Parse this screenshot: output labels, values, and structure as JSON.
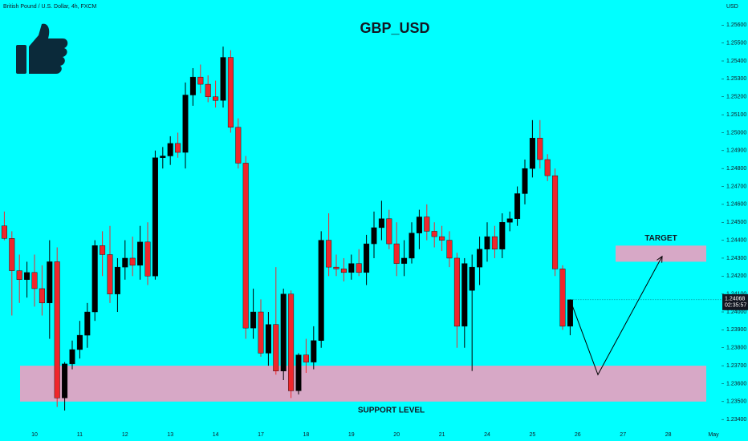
{
  "chart_data": {
    "type": "candlestick",
    "title": "GBP_USD",
    "subtitle": "British Pound / U.S. Dollar, 4h, FXCM",
    "currency": "USD",
    "categories": [
      null,
      null,
      null,
      null,
      "10",
      null,
      null,
      null,
      null,
      null,
      "11",
      null,
      null,
      null,
      null,
      null,
      "12",
      null,
      null,
      null,
      null,
      null,
      "13",
      null,
      null,
      null,
      null,
      null,
      "14",
      null,
      null,
      null,
      null,
      null,
      "17",
      null,
      null,
      null,
      null,
      null,
      "18",
      null,
      null,
      null,
      null,
      null,
      "19",
      null,
      null,
      null,
      null,
      null,
      "20",
      null,
      null,
      null,
      null,
      null,
      "21",
      null,
      null,
      null,
      null,
      null,
      "24",
      null,
      null,
      null,
      null,
      null,
      "25",
      null,
      null,
      null,
      null,
      null,
      "26",
      null,
      null,
      null,
      null,
      null,
      "27",
      null,
      null,
      null,
      null,
      null,
      "28",
      null,
      null,
      null,
      null,
      null,
      "May",
      null
    ],
    "open": [
      1.2448,
      1.2441,
      1.2423,
      1.2418,
      1.2422,
      1.2413,
      1.2405,
      1.2428,
      1.2352,
      1.2371,
      1.2379,
      1.2387,
      1.24,
      1.2437,
      1.2432,
      1.241,
      1.2425,
      1.243,
      1.2426,
      1.2439,
      1.242,
      1.2486,
      1.2487,
      1.2494,
      1.2489,
      1.2521,
      1.2531,
      1.2527,
      1.252,
      1.2518,
      1.2542,
      1.2503,
      1.2483,
      1.2391,
      1.24,
      1.2377,
      1.2393,
      1.2367,
      1.241,
      1.2356,
      1.2376,
      1.2372,
      1.2384,
      1.244,
      1.2425,
      1.2424,
      1.2422,
      1.2427,
      1.2422,
      1.2438,
      1.2447,
      1.2452,
      1.2438,
      1.2427,
      1.243,
      1.2444,
      1.2453,
      1.2445,
      1.2442,
      1.244,
      1.243,
      1.2392,
      1.2412,
      1.2425,
      1.2435,
      1.2442,
      1.2435,
      1.245,
      1.2452,
      1.2466,
      1.248,
      1.2497,
      1.2485,
      1.2476,
      1.2424,
      1.2392,
      null,
      null,
      null,
      null,
      null,
      null,
      null,
      null,
      null,
      null,
      null,
      null,
      null,
      null,
      null,
      null,
      null,
      null,
      null,
      null
    ],
    "high": [
      1.2456,
      1.2445,
      1.2432,
      1.2428,
      1.2432,
      1.2426,
      1.244,
      1.2436,
      1.2372,
      1.2384,
      1.2395,
      1.2405,
      1.244,
      1.2445,
      1.2448,
      1.243,
      1.244,
      1.2442,
      1.2448,
      1.245,
      1.249,
      1.2492,
      1.2498,
      1.25,
      1.2528,
      1.2536,
      1.2538,
      1.2532,
      1.2529,
      1.2548,
      1.2546,
      1.2508,
      1.2487,
      1.2413,
      1.2407,
      1.24,
      1.2425,
      1.2413,
      1.2412,
      1.2377,
      1.2385,
      1.2392,
      1.2445,
      1.2455,
      1.2432,
      1.243,
      1.2432,
      1.2435,
      1.2443,
      1.2456,
      1.2462,
      1.2457,
      1.245,
      1.244,
      1.245,
      1.2457,
      1.246,
      1.245,
      1.2448,
      1.2445,
      1.2433,
      1.243,
      1.2432,
      1.2442,
      1.245,
      1.2448,
      1.2455,
      1.2456,
      1.247,
      1.2485,
      1.2507,
      1.2507,
      1.2488,
      1.248,
      1.2426,
      1.2407,
      null,
      null,
      null,
      null,
      null,
      null,
      null,
      null,
      null,
      null,
      null,
      null,
      null,
      null,
      null,
      null,
      null,
      null,
      null,
      null
    ],
    "low": [
      1.244,
      1.2398,
      1.2405,
      1.2408,
      1.2403,
      1.2398,
      1.2385,
      1.2347,
      1.2345,
      1.2368,
      1.2374,
      1.238,
      1.2395,
      1.242,
      1.2405,
      1.24,
      1.2418,
      1.242,
      1.2418,
      1.2415,
      1.2418,
      1.248,
      1.2482,
      1.2486,
      1.248,
      1.2515,
      1.2522,
      1.2517,
      1.2514,
      1.2514,
      1.25,
      1.248,
      1.2385,
      1.2385,
      1.2375,
      1.237,
      1.2365,
      1.2362,
      1.2352,
      1.2354,
      1.2366,
      1.2368,
      1.238,
      1.242,
      1.242,
      1.2417,
      1.2418,
      1.242,
      1.2415,
      1.243,
      1.244,
      1.2435,
      1.242,
      1.242,
      1.2427,
      1.2435,
      1.244,
      1.2436,
      1.2434,
      1.2425,
      1.238,
      1.238,
      1.2367,
      1.2415,
      1.2428,
      1.243,
      1.243,
      1.2445,
      1.2448,
      1.246,
      1.2475,
      1.248,
      1.2473,
      1.242,
      1.239,
      1.2387,
      null,
      null,
      null,
      null,
      null,
      null,
      null,
      null,
      null,
      null,
      null,
      null,
      null,
      null,
      null,
      null,
      null,
      null,
      null,
      null
    ],
    "close": [
      1.2441,
      1.2423,
      1.2418,
      1.2422,
      1.2413,
      1.2405,
      1.2428,
      1.2352,
      1.2371,
      1.2379,
      1.2387,
      1.24,
      1.2437,
      1.2432,
      1.241,
      1.2425,
      1.243,
      1.2426,
      1.2439,
      1.242,
      1.2486,
      1.2487,
      1.2494,
      1.2489,
      1.2521,
      1.2531,
      1.2527,
      1.252,
      1.2518,
      1.2542,
      1.2503,
      1.2483,
      1.2391,
      1.24,
      1.2377,
      1.2393,
      1.2367,
      1.241,
      1.2356,
      1.2376,
      1.2372,
      1.2384,
      1.244,
      1.2425,
      1.2424,
      1.2422,
      1.2427,
      1.2422,
      1.2438,
      1.2447,
      1.2452,
      1.2438,
      1.2427,
      1.243,
      1.2444,
      1.2453,
      1.2445,
      1.2442,
      1.244,
      1.243,
      1.2392,
      1.2427,
      1.2425,
      1.2435,
      1.2442,
      1.2435,
      1.245,
      1.2452,
      1.2466,
      1.248,
      1.2497,
      1.2485,
      1.2476,
      1.2424,
      1.2392,
      1.24068,
      null,
      null,
      null,
      null,
      null,
      null,
      null,
      null,
      null,
      null,
      null,
      null,
      null,
      null,
      null,
      null,
      null,
      null,
      null,
      null
    ],
    "up_color": "#000000",
    "down_color": "#f0262b",
    "ylim": [
      1.2328,
      1.2574
    ],
    "yticks": [
      {
        "value": 1.234,
        "label": "1.23400"
      },
      {
        "value": 1.235,
        "label": "1.23500"
      },
      {
        "value": 1.236,
        "label": "1.23600"
      },
      {
        "value": 1.237,
        "label": "1.23700"
      },
      {
        "value": 1.238,
        "label": "1.23800"
      },
      {
        "value": 1.239,
        "label": "1.23900"
      },
      {
        "value": 1.24,
        "label": "1.24000"
      },
      {
        "value": 1.241,
        "label": "1.24100"
      },
      {
        "value": 1.242,
        "label": "1.24200"
      },
      {
        "value": 1.243,
        "label": "1.24300"
      },
      {
        "value": 1.244,
        "label": "1.24400"
      },
      {
        "value": 1.245,
        "label": "1.24500"
      },
      {
        "value": 1.246,
        "label": "1.24600"
      },
      {
        "value": 1.247,
        "label": "1.24700"
      },
      {
        "value": 1.248,
        "label": "1.24800"
      },
      {
        "value": 1.249,
        "label": "1.24900"
      },
      {
        "value": 1.25,
        "label": "1.25000"
      },
      {
        "value": 1.251,
        "label": "1.25100"
      },
      {
        "value": 1.252,
        "label": "1.25200"
      },
      {
        "value": 1.253,
        "label": "1.25300"
      },
      {
        "value": 1.254,
        "label": "1.25400"
      },
      {
        "value": 1.255,
        "label": "1.25500"
      },
      {
        "value": 1.256,
        "label": "1.25600"
      }
    ],
    "price_label": {
      "value": 1.24068,
      "label": "1.24068"
    },
    "timer": "02:35:57",
    "zones": [
      {
        "label": "SUPPORT LEVEL",
        "range": [
          1.235,
          1.237
        ],
        "color": "#d7a8c6"
      },
      {
        "label": "TARGET",
        "range": [
          1.2428,
          1.2437
        ],
        "color": "#d7a8c6"
      }
    ],
    "projection": [
      1.2365,
      1.2431
    ]
  }
}
